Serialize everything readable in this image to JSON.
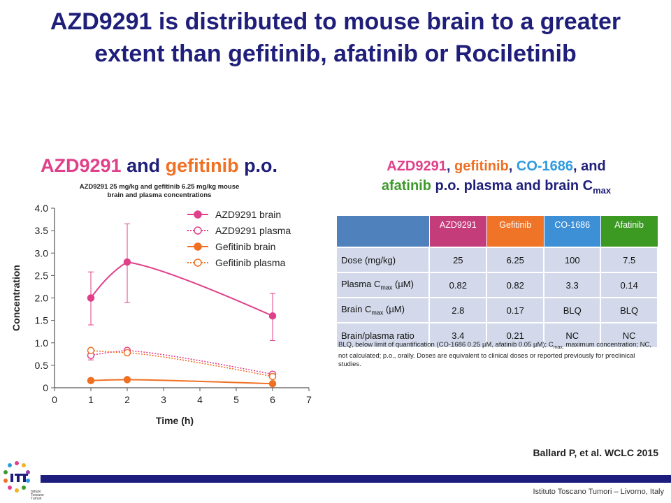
{
  "slide": {
    "title": "AZD9291 is distributed to mouse brain to a greater extent than gefitinib, afatinib or Rociletinib",
    "left_title": {
      "part1": "AZD9291",
      "part2": " and ",
      "part3": "gefitinib",
      "part4": " p.o."
    },
    "left_subtitle_line1": "AZD9291 25 mg/kg and gefitinib 6.25 mg/kg mouse",
    "left_subtitle_line2": "brain and plasma concentrations",
    "right_title": {
      "p1": "AZD9291",
      "p2": ", ",
      "p3": "gefitinib",
      "p4": ", ",
      "p5": "CO-1686",
      "p6": ", and",
      "p7": "afatinib",
      "p8": " p.o. plasma and brain C",
      "p9": "max"
    },
    "citation": "Ballard P, et al. WCLC 2015",
    "footer": "Istituto Toscano Tumori – Livorno, Italy",
    "logo_text": [
      "Istituto",
      "Toscano",
      "Tumori"
    ],
    "note": "BLQ, below limit of quantification (CO-1686 0.25 µM, afatinib 0.05 µM); C",
    "note_sub": "max,",
    "note_rest": " maximum concentration; NC, not calculated; p.o., orally. Doses are equivalent to clinical doses or reported previously for preclinical studies."
  },
  "colors": {
    "azd": "#e0408a",
    "gef": "#f07023",
    "co": "#2e9be0",
    "afa": "#3c9a2a",
    "header_azd": "#c43c79",
    "header_gef": "#f07428",
    "header_co": "#3d8fd6",
    "header_afa": "#3c9a22",
    "header_blank": "#4f81bd",
    "title": "#1f1f7a"
  },
  "table": {
    "headers": [
      "",
      "AZD9291",
      "Gefitinib",
      "CO-1686",
      "Afatinib"
    ],
    "rows": [
      {
        "label": "Dose (mg/kg)",
        "label_sub": "",
        "label_after": "",
        "values": [
          "25",
          "6.25",
          "100",
          "7.5"
        ]
      },
      {
        "label": "Plasma C",
        "label_sub": "max",
        "label_after": " (µM)",
        "values": [
          "0.82",
          "0.82",
          "3.3",
          "0.14"
        ]
      },
      {
        "label": "Brain C",
        "label_sub": "max",
        "label_after": " (µM)",
        "values": [
          "2.8",
          "0.17",
          "BLQ",
          "BLQ"
        ]
      },
      {
        "label": "Brain/plasma ratio",
        "label_sub": "",
        "label_after": "",
        "values": [
          "3.4",
          "0.21",
          "NC",
          "NC"
        ]
      }
    ]
  },
  "chart_data": {
    "type": "line",
    "title": "",
    "xlabel": "Time (h)",
    "ylabel": "Concentration",
    "xlim": [
      0,
      7
    ],
    "ylim": [
      0,
      4.0
    ],
    "xticks": [
      0,
      1,
      2,
      3,
      4,
      5,
      6,
      7
    ],
    "yticks": [
      0,
      0.5,
      1.0,
      1.5,
      2.0,
      2.5,
      3.0,
      3.5,
      4.0
    ],
    "ytick_labels": [
      "0",
      "0.5",
      "1.0",
      "1.5",
      "2.0",
      "2.5",
      "3.0",
      "3.5",
      "4.0"
    ],
    "grid": false,
    "legend_position": "top-right",
    "series": [
      {
        "name": "AZD9291 brain",
        "color": "#e0408a",
        "style": "solid",
        "marker": "filled",
        "x": [
          1,
          2,
          6
        ],
        "y": [
          2.0,
          2.8,
          1.6
        ],
        "err_low": [
          1.4,
          1.9,
          1.05
        ],
        "err_high": [
          2.58,
          3.65,
          2.1
        ]
      },
      {
        "name": "AZD9291 plasma",
        "color": "#e0408a",
        "style": "dotted",
        "marker": "open",
        "x": [
          1,
          2,
          6
        ],
        "y": [
          0.72,
          0.83,
          0.3
        ],
        "err_low": [
          0.62,
          0.77,
          0.26
        ],
        "err_high": [
          0.8,
          0.88,
          0.34
        ]
      },
      {
        "name": "Gefitinib brain",
        "color": "#f07023",
        "style": "solid",
        "marker": "filled",
        "x": [
          1,
          2,
          6
        ],
        "y": [
          0.16,
          0.18,
          0.09
        ]
      },
      {
        "name": "Gefitinib plasma",
        "color": "#f07023",
        "style": "dotted",
        "marker": "open",
        "x": [
          1,
          2,
          6
        ],
        "y": [
          0.83,
          0.78,
          0.25
        ]
      }
    ]
  }
}
